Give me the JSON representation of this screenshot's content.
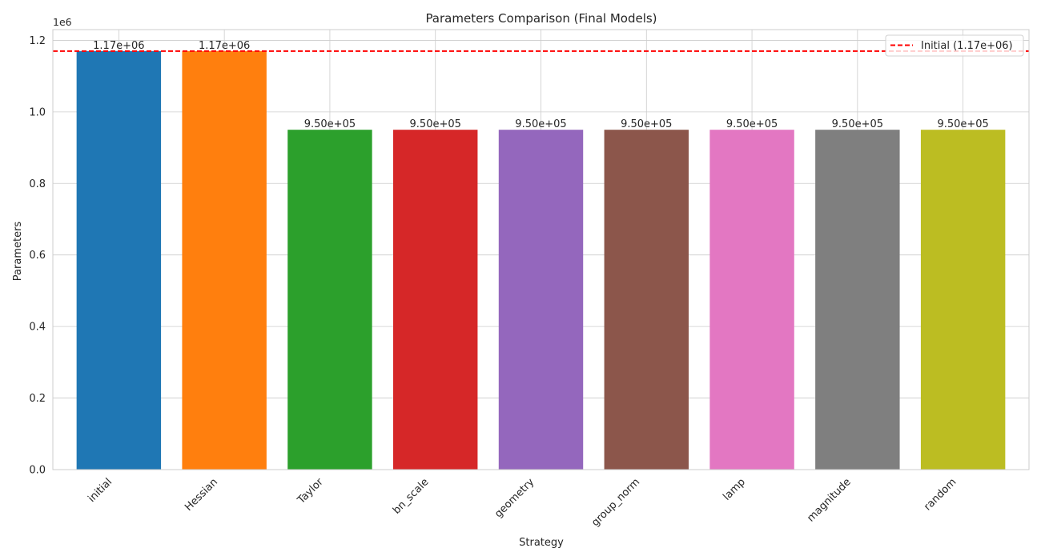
{
  "chart_data": {
    "type": "bar",
    "title": "Parameters Comparison (Final Models)",
    "xlabel": "Strategy",
    "ylabel": "Parameters",
    "y_scale_label": "1e6",
    "ylim": [
      0,
      1.23
    ],
    "y_ticks": [
      0.0,
      0.2,
      0.4,
      0.6,
      0.8,
      1.0,
      1.2
    ],
    "y_tick_labels": [
      "0.0",
      "0.2",
      "0.4",
      "0.6",
      "0.8",
      "1.0",
      "1.2"
    ],
    "categories": [
      "initial",
      "Hessian",
      "Taylor",
      "bn_scale",
      "geometry",
      "group_norm",
      "lamp",
      "magnitude",
      "random"
    ],
    "values": [
      1.17,
      1.17,
      0.95,
      0.95,
      0.95,
      0.95,
      0.95,
      0.95,
      0.95
    ],
    "value_labels": [
      "1.17e+06",
      "1.17e+06",
      "9.50e+05",
      "9.50e+05",
      "9.50e+05",
      "9.50e+05",
      "9.50e+05",
      "9.50e+05",
      "9.50e+05"
    ],
    "colors": [
      "#1f77b4",
      "#ff7f0e",
      "#2ca02c",
      "#d62728",
      "#9467bd",
      "#8c564b",
      "#e377c2",
      "#7f7f7f",
      "#bcbd22"
    ],
    "reference_line": {
      "value": 1.17,
      "label": "Initial (1.17e+06)",
      "color": "#ff0000",
      "style": "dashed"
    },
    "grid": true,
    "legend_position": "top-right"
  }
}
